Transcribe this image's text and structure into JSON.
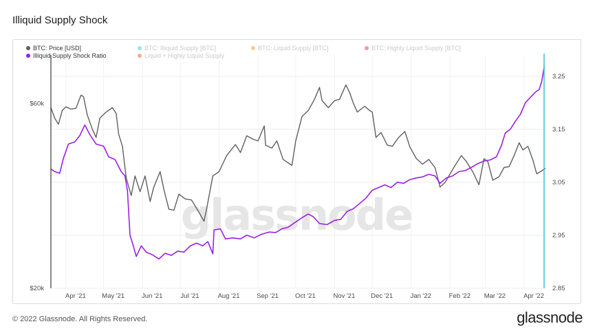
{
  "header": {
    "title": "Illiquid Supply Shock"
  },
  "footer": {
    "copyright": "© 2022 Glassnode. All Rights Reserved.",
    "logo": "glassnode"
  },
  "watermark": "glassnode",
  "colors": {
    "price": "#5f5f5f",
    "ratio": "#9b1fe8",
    "illiquid": "#22c3d6",
    "liquid": "#f08a17",
    "highly_liquid": "#e8203f",
    "combined": "#e5452b",
    "cursor": "#35c2d3"
  },
  "legend": [
    {
      "label": "BTC: Price [USD]",
      "color": "#5f5f5f",
      "dimmed": false
    },
    {
      "label": "BTC: Illiquid Supply [BTC]",
      "color": "#22c3d6",
      "dimmed": true
    },
    {
      "label": "BTC: Liquid Supply [BTC]",
      "color": "#f08a17",
      "dimmed": true
    },
    {
      "label": "BTC: Highly Liquid Supply [BTC]",
      "color": "#e8203f",
      "dimmed": true
    },
    {
      "label": "Illiquid Supply Shock Ratio",
      "color": "#9b1fe8",
      "dimmed": false
    },
    {
      "label": "Liquid + Highly Liquid Supply",
      "color": "#e5452b",
      "dimmed": true
    }
  ],
  "chart_data": {
    "type": "line",
    "title": "Illiquid Supply Shock",
    "x_ticks": [
      "Apr '21",
      "May '21",
      "Jun '21",
      "Jul '21",
      "Aug '21",
      "Sep '21",
      "Oct '21",
      "Nov '21",
      "Dec '21",
      "Jan '22",
      "Feb '22",
      "Mar '22",
      "Apr '22"
    ],
    "x_tick_dates": [
      "2021-04-01",
      "2021-05-01",
      "2021-06-01",
      "2021-07-01",
      "2021-08-01",
      "2021-09-01",
      "2021-10-01",
      "2021-11-01",
      "2021-12-01",
      "2022-01-01",
      "2022-02-01",
      "2022-03-01",
      "2022-04-01"
    ],
    "x_range": [
      "2021-03-20",
      "2022-04-18"
    ],
    "y_left": {
      "scale": "log",
      "ticks": [
        "$20k",
        "$60k"
      ],
      "tick_values": [
        20000,
        60000
      ],
      "range": [
        20000,
        80000
      ]
    },
    "y_right": {
      "scale": "linear",
      "ticks": [
        "2.85",
        "2.95",
        "3.05",
        "3.15",
        "3.25"
      ],
      "tick_values": [
        2.85,
        2.95,
        3.05,
        3.15,
        3.25
      ],
      "range": [
        2.85,
        3.29
      ]
    },
    "grid": true,
    "legend_position": "top-left",
    "series": [
      {
        "name": "BTC: Price [USD]",
        "axis": "left",
        "points": [
          [
            "2021-03-20",
            58500
          ],
          [
            "2021-03-23",
            55000
          ],
          [
            "2021-03-26",
            53000
          ],
          [
            "2021-03-29",
            57500
          ],
          [
            "2021-04-01",
            58800
          ],
          [
            "2021-04-05",
            58000
          ],
          [
            "2021-04-09",
            58300
          ],
          [
            "2021-04-13",
            63000
          ],
          [
            "2021-04-15",
            62500
          ],
          [
            "2021-04-18",
            56000
          ],
          [
            "2021-04-22",
            51500
          ],
          [
            "2021-04-25",
            49000
          ],
          [
            "2021-04-28",
            55000
          ],
          [
            "2021-05-03",
            57000
          ],
          [
            "2021-05-08",
            58500
          ],
          [
            "2021-05-11",
            56500
          ],
          [
            "2021-05-13",
            50000
          ],
          [
            "2021-05-16",
            46500
          ],
          [
            "2021-05-19",
            38500
          ],
          [
            "2021-05-23",
            34700
          ],
          [
            "2021-05-26",
            39000
          ],
          [
            "2021-05-30",
            35500
          ],
          [
            "2021-06-03",
            39000
          ],
          [
            "2021-06-07",
            33500
          ],
          [
            "2021-06-10",
            36500
          ],
          [
            "2021-06-15",
            40000
          ],
          [
            "2021-06-18",
            36000
          ],
          [
            "2021-06-22",
            32000
          ],
          [
            "2021-06-26",
            31800
          ],
          [
            "2021-06-30",
            35000
          ],
          [
            "2021-07-05",
            34000
          ],
          [
            "2021-07-10",
            33800
          ],
          [
            "2021-07-15",
            31800
          ],
          [
            "2021-07-20",
            29800
          ],
          [
            "2021-07-22",
            32000
          ],
          [
            "2021-07-27",
            39000
          ],
          [
            "2021-08-01",
            40000
          ],
          [
            "2021-08-07",
            44000
          ],
          [
            "2021-08-14",
            47000
          ],
          [
            "2021-08-18",
            44800
          ],
          [
            "2021-08-23",
            49500
          ],
          [
            "2021-08-28",
            48500
          ],
          [
            "2021-09-01",
            48000
          ],
          [
            "2021-09-06",
            52500
          ],
          [
            "2021-09-07",
            46800
          ],
          [
            "2021-09-12",
            46000
          ],
          [
            "2021-09-16",
            48000
          ],
          [
            "2021-09-21",
            43000
          ],
          [
            "2021-09-28",
            41500
          ],
          [
            "2021-10-01",
            48000
          ],
          [
            "2021-10-06",
            55500
          ],
          [
            "2021-10-11",
            57500
          ],
          [
            "2021-10-16",
            61500
          ],
          [
            "2021-10-20",
            66000
          ],
          [
            "2021-10-22",
            61000
          ],
          [
            "2021-10-27",
            58500
          ],
          [
            "2021-11-01",
            61000
          ],
          [
            "2021-11-05",
            61500
          ],
          [
            "2021-11-10",
            67000
          ],
          [
            "2021-11-13",
            64000
          ],
          [
            "2021-11-16",
            60000
          ],
          [
            "2021-11-19",
            57000
          ],
          [
            "2021-11-25",
            59000
          ],
          [
            "2021-11-29",
            57500
          ],
          [
            "2021-12-01",
            57000
          ],
          [
            "2021-12-04",
            49000
          ],
          [
            "2021-12-08",
            50500
          ],
          [
            "2021-12-13",
            46800
          ],
          [
            "2021-12-17",
            46500
          ],
          [
            "2021-12-22",
            49000
          ],
          [
            "2021-12-27",
            50800
          ],
          [
            "2021-12-31",
            46300
          ],
          [
            "2022-01-05",
            43300
          ],
          [
            "2022-01-10",
            41800
          ],
          [
            "2022-01-15",
            43000
          ],
          [
            "2022-01-20",
            41000
          ],
          [
            "2022-01-24",
            36500
          ],
          [
            "2022-01-28",
            37500
          ],
          [
            "2022-02-05",
            41500
          ],
          [
            "2022-02-10",
            44000
          ],
          [
            "2022-02-14",
            42500
          ],
          [
            "2022-02-19",
            40000
          ],
          [
            "2022-02-24",
            37000
          ],
          [
            "2022-02-28",
            43200
          ],
          [
            "2022-03-03",
            42500
          ],
          [
            "2022-03-07",
            38000
          ],
          [
            "2022-03-12",
            38800
          ],
          [
            "2022-03-16",
            41000
          ],
          [
            "2022-03-20",
            41200
          ],
          [
            "2022-03-24",
            44000
          ],
          [
            "2022-03-28",
            47500
          ],
          [
            "2022-03-31",
            45500
          ],
          [
            "2022-04-04",
            46500
          ],
          [
            "2022-04-08",
            42800
          ],
          [
            "2022-04-11",
            39500
          ],
          [
            "2022-04-14",
            40000
          ],
          [
            "2022-04-18",
            40800
          ]
        ]
      },
      {
        "name": "Illiquid Supply Shock Ratio",
        "axis": "right",
        "points": [
          [
            "2021-03-20",
            3.075
          ],
          [
            "2021-03-23",
            3.07
          ],
          [
            "2021-03-27",
            3.067
          ],
          [
            "2021-03-30",
            3.095
          ],
          [
            "2021-04-03",
            3.122
          ],
          [
            "2021-04-08",
            3.126
          ],
          [
            "2021-04-12",
            3.138
          ],
          [
            "2021-04-16",
            3.158
          ],
          [
            "2021-04-20",
            3.14
          ],
          [
            "2021-04-25",
            3.122
          ],
          [
            "2021-05-01",
            3.118
          ],
          [
            "2021-05-05",
            3.098
          ],
          [
            "2021-05-10",
            3.093
          ],
          [
            "2021-05-15",
            3.07
          ],
          [
            "2021-05-18",
            3.062
          ],
          [
            "2021-05-20",
            3.034
          ],
          [
            "2021-05-22",
            2.95
          ],
          [
            "2021-05-24",
            2.935
          ],
          [
            "2021-05-27",
            2.91
          ],
          [
            "2021-05-31",
            2.93
          ],
          [
            "2021-06-04",
            2.918
          ],
          [
            "2021-06-09",
            2.913
          ],
          [
            "2021-06-14",
            2.905
          ],
          [
            "2021-06-19",
            2.916
          ],
          [
            "2021-06-24",
            2.912
          ],
          [
            "2021-06-29",
            2.92
          ],
          [
            "2021-07-04",
            2.918
          ],
          [
            "2021-07-09",
            2.93
          ],
          [
            "2021-07-14",
            2.935
          ],
          [
            "2021-07-19",
            2.93
          ],
          [
            "2021-07-23",
            2.938
          ],
          [
            "2021-07-27",
            2.915
          ],
          [
            "2021-07-28",
            2.96
          ],
          [
            "2021-08-02",
            2.962
          ],
          [
            "2021-08-06",
            2.943
          ],
          [
            "2021-08-12",
            2.945
          ],
          [
            "2021-08-18",
            2.943
          ],
          [
            "2021-08-23",
            2.95
          ],
          [
            "2021-08-29",
            2.945
          ],
          [
            "2021-09-04",
            2.952
          ],
          [
            "2021-09-10",
            2.956
          ],
          [
            "2021-09-15",
            2.955
          ],
          [
            "2021-09-20",
            2.962
          ],
          [
            "2021-09-25",
            2.965
          ],
          [
            "2021-10-01",
            2.975
          ],
          [
            "2021-10-06",
            2.983
          ],
          [
            "2021-10-11",
            2.99
          ],
          [
            "2021-10-15",
            2.985
          ],
          [
            "2021-10-20",
            2.972
          ],
          [
            "2021-10-26",
            2.97
          ],
          [
            "2021-11-01",
            2.978
          ],
          [
            "2021-11-06",
            2.98
          ],
          [
            "2021-11-11",
            2.995
          ],
          [
            "2021-11-16",
            3.0
          ],
          [
            "2021-11-21",
            3.01
          ],
          [
            "2021-11-26",
            3.02
          ],
          [
            "2021-12-01",
            3.035
          ],
          [
            "2021-12-06",
            3.04
          ],
          [
            "2021-12-11",
            3.045
          ],
          [
            "2021-12-16",
            3.04
          ],
          [
            "2021-12-21",
            3.05
          ],
          [
            "2021-12-26",
            3.048
          ],
          [
            "2021-12-31",
            3.055
          ],
          [
            "2022-01-05",
            3.058
          ],
          [
            "2022-01-10",
            3.06
          ],
          [
            "2022-01-15",
            3.065
          ],
          [
            "2022-01-20",
            3.062
          ],
          [
            "2022-01-24",
            3.048
          ],
          [
            "2022-01-29",
            3.058
          ],
          [
            "2022-02-03",
            3.062
          ],
          [
            "2022-02-08",
            3.07
          ],
          [
            "2022-02-13",
            3.072
          ],
          [
            "2022-02-18",
            3.078
          ],
          [
            "2022-02-23",
            3.085
          ],
          [
            "2022-02-28",
            3.09
          ],
          [
            "2022-03-05",
            3.092
          ],
          [
            "2022-03-10",
            3.098
          ],
          [
            "2022-03-14",
            3.12
          ],
          [
            "2022-03-17",
            3.143
          ],
          [
            "2022-03-21",
            3.15
          ],
          [
            "2022-03-25",
            3.165
          ],
          [
            "2022-03-29",
            3.178
          ],
          [
            "2022-04-02",
            3.2
          ],
          [
            "2022-04-06",
            3.21
          ],
          [
            "2022-04-10",
            3.22
          ],
          [
            "2022-04-13",
            3.225
          ],
          [
            "2022-04-15",
            3.24
          ],
          [
            "2022-04-17",
            3.268
          ]
        ]
      }
    ]
  }
}
